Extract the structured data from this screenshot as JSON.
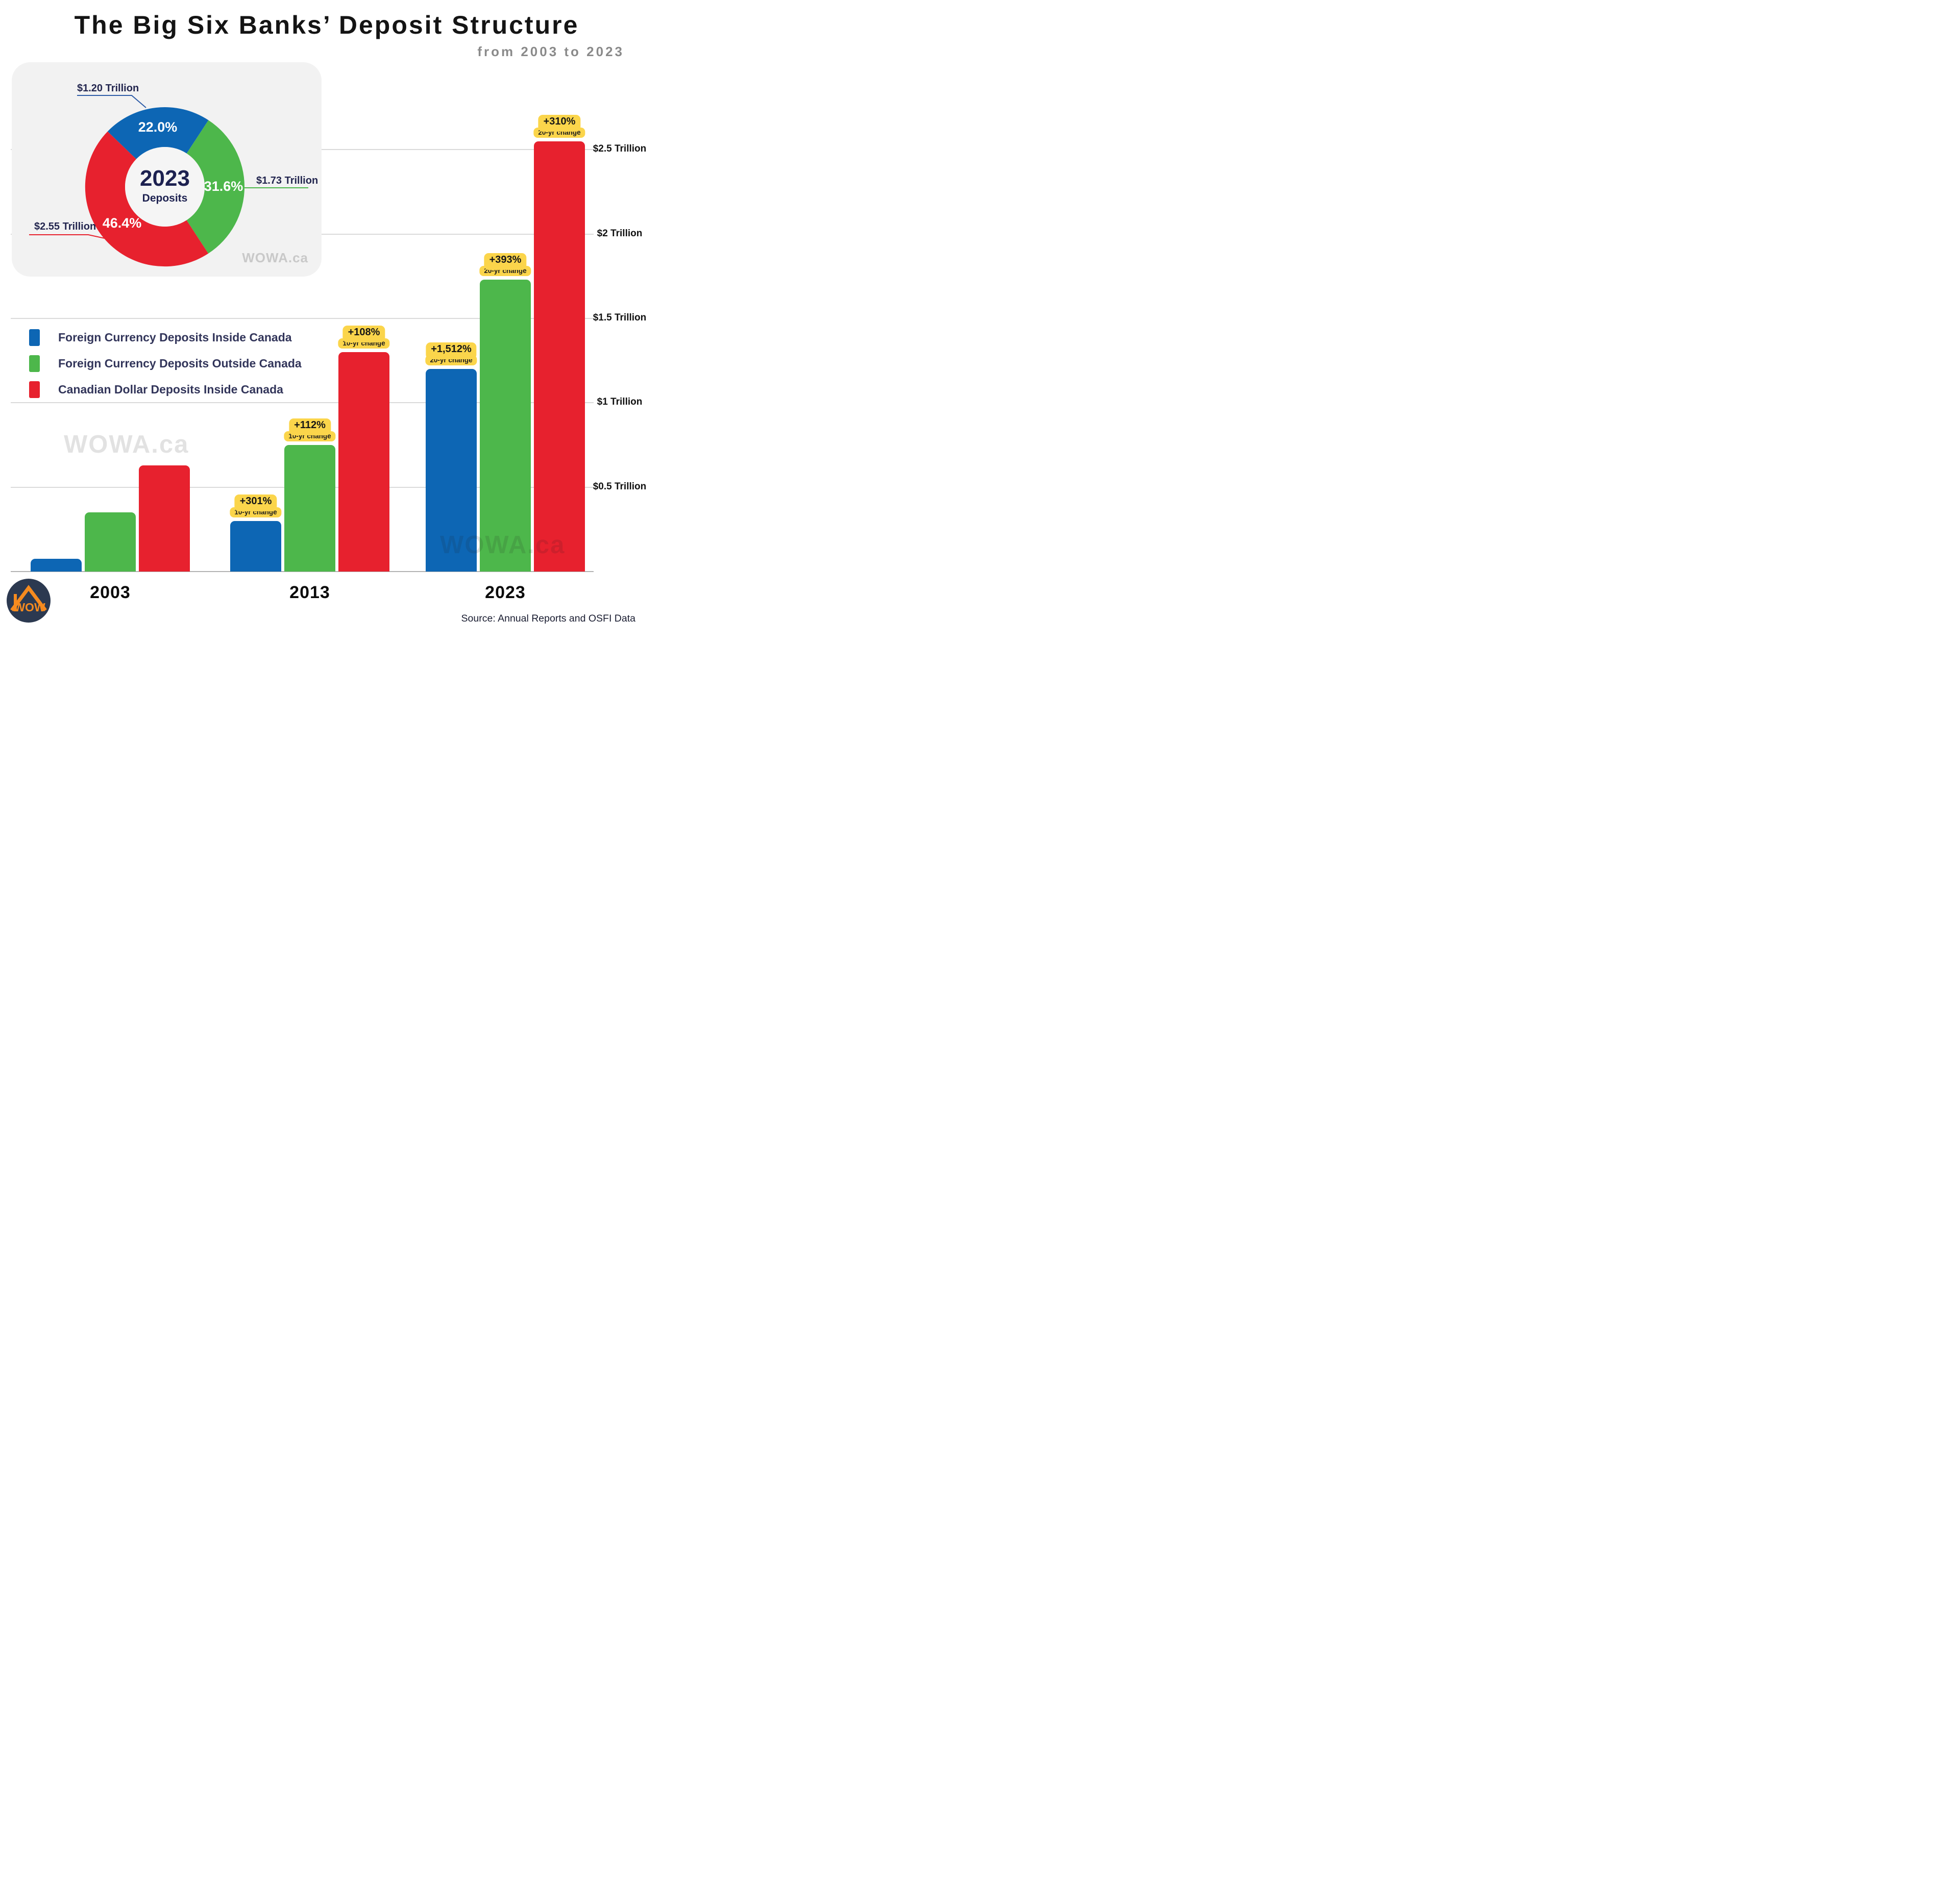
{
  "header": {
    "title": "The Big Six Banks’ Deposit Structure",
    "subtitle": "from 2003 to 2023"
  },
  "colors": {
    "blue": "#0d66b4",
    "green": "#4db74b",
    "red": "#e7212e",
    "yellow": "#fbd54b",
    "navy": "#32355a",
    "panel_bg": "#f2f2f2",
    "grid": "#dadada",
    "axis": "#b3b3b3",
    "leader_blue": "#2f5da8",
    "leader_green": "#4db74b",
    "leader_red": "#e7212e",
    "logo_bg": "#2c3950",
    "logo_orange": "#f68b1f"
  },
  "donut": {
    "center_year": "2023",
    "center_label": "Deposits",
    "watermark": "WOWA.ca",
    "start_angle_deg": -46,
    "segments": [
      {
        "label": "Foreign Currency Deposits Inside Canada",
        "color_key": "blue",
        "percent": 22.0,
        "percent_label": "22.0%",
        "value_label": "$1.20 Trillion"
      },
      {
        "label": "Foreign Currency Deposits Outside Canada",
        "color_key": "green",
        "percent": 31.6,
        "percent_label": "31.6%",
        "value_label": "$1.73 Trillion"
      },
      {
        "label": "Canadian Dollar Deposits Inside Canada",
        "color_key": "red",
        "percent": 46.4,
        "percent_label": "46.4%",
        "value_label": "$2.55 Trillion"
      }
    ]
  },
  "legend": {
    "items": [
      {
        "label": "Foreign Currency Deposits Inside Canada",
        "color_key": "blue"
      },
      {
        "label": "Foreign Currency Deposits Outside Canada",
        "color_key": "green"
      },
      {
        "label": "Canadian Dollar Deposits Inside Canada",
        "color_key": "red"
      }
    ]
  },
  "chart_data": {
    "type": "bar",
    "title": "The Big Six Banks’ Deposit Structure from 2003 to 2023",
    "unit": "trillions of Canadian dollars",
    "categories": [
      "2003",
      "2013",
      "2023"
    ],
    "series": [
      {
        "name": "Foreign Currency Deposits Inside Canada",
        "color": "#0d66b4",
        "values": [
          0.075,
          0.3,
          1.2
        ]
      },
      {
        "name": "Foreign Currency Deposits Outside Canada",
        "color": "#4db74b",
        "values": [
          0.35,
          0.75,
          1.73
        ]
      },
      {
        "name": "Canadian Dollar Deposits Inside Canada",
        "color": "#e7212e",
        "values": [
          0.63,
          1.3,
          2.55
        ]
      }
    ],
    "ylabels": [
      "$0.5 Trillion",
      "$1 Trillion",
      "$1.5 Trillion",
      "$2 Trillion",
      "$2.5 Trillion"
    ],
    "ytick_values": [
      0.5,
      1.0,
      1.5,
      2.0,
      2.5
    ],
    "ylim": [
      0,
      2.6
    ],
    "grid": true,
    "legend_position": "middle-left",
    "badges": [
      {
        "category": "2013",
        "series": 0,
        "percent": "+301%",
        "label": "10-yr change"
      },
      {
        "category": "2013",
        "series": 1,
        "percent": "+112%",
        "label": "10-yr change"
      },
      {
        "category": "2013",
        "series": 2,
        "percent": "+108%",
        "label": "10-yr change"
      },
      {
        "category": "2023",
        "series": 0,
        "percent": "+1,512%",
        "label": "20-yr change"
      },
      {
        "category": "2023",
        "series": 1,
        "percent": "+393%",
        "label": "20-yr change"
      },
      {
        "category": "2023",
        "series": 2,
        "percent": "+310%",
        "label": "20-yr change"
      }
    ]
  },
  "watermarks": {
    "left": "WOWA.ca",
    "bottom": "WOWA.ca"
  },
  "footer": {
    "source": "Source: Annual Reports and OSFI Data"
  },
  "logo": {
    "text": "WOW"
  }
}
